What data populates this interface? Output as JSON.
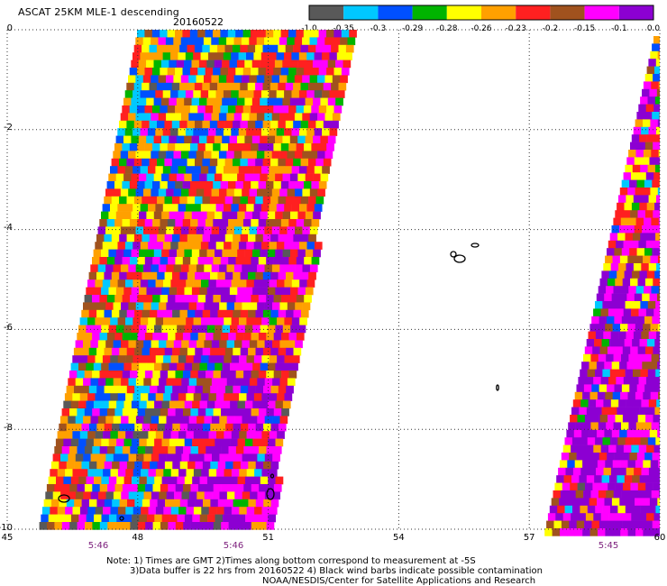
{
  "header": {
    "title": "ASCAT 25KM MLE-1 descending",
    "date": "20160522"
  },
  "colorbar": {
    "labels": [
      "-1.0",
      "-0.35",
      "-0.3",
      "-0.29",
      "-0.28",
      "-0.26",
      "-0.23",
      "-0.2",
      "-0.15",
      "-0.1",
      "0.0"
    ],
    "colors": [
      "#595959",
      "#00c8ff",
      "#0050ff",
      "#00b400",
      "#ffff00",
      "#ffa000",
      "#ff2020",
      "#a0521e",
      "#ff00ff",
      "#8c00d2"
    ]
  },
  "map": {
    "y_axis_labels": [
      "0",
      "-2",
      "-4",
      "-6",
      "-8",
      "-10"
    ],
    "x_axis_labels": [
      "45",
      "48",
      "51",
      "54",
      "57",
      "60"
    ],
    "time_labels": [
      "5:46",
      "5:46",
      "5:45"
    ],
    "lat_range": [
      -10,
      0
    ],
    "lon_range": [
      45,
      60
    ],
    "grid": "dotted"
  },
  "footer": {
    "line1": "Note: 1) Times are GMT 2)Times along bottom correspond to measurement at -5S",
    "line2": "3)Data buffer is 22 hrs from 20160522 4) Black wind barbs indicate possible contamination",
    "line3": "NOAA/NESDIS/Center for Satellite Applications and Research"
  }
}
